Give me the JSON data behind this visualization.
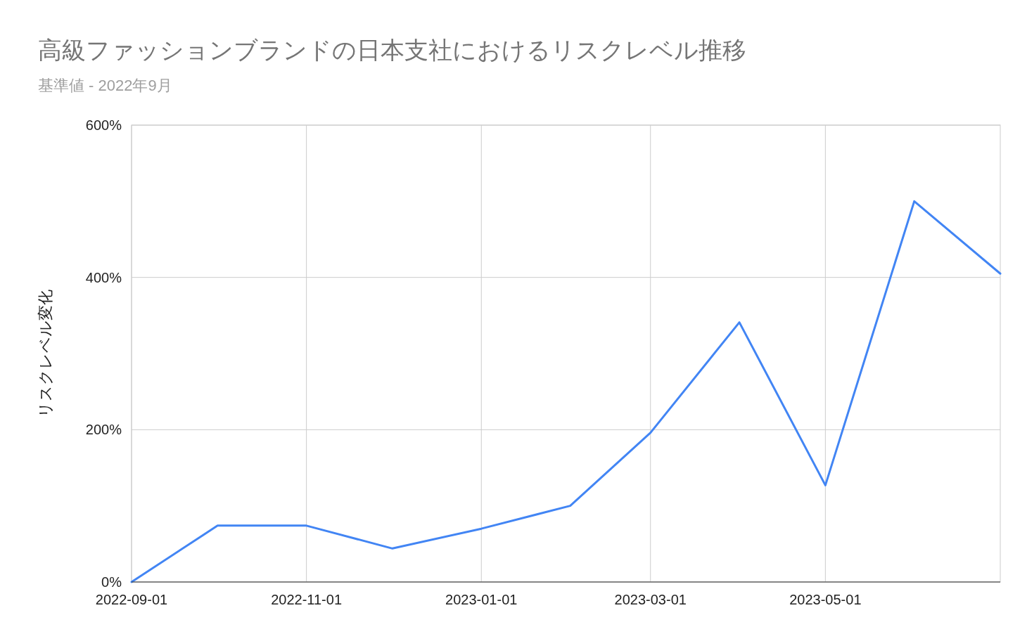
{
  "chart_data": {
    "type": "line",
    "title": "高級ファッションブランドの日本支社におけるリスクレベル推移",
    "subtitle": "基準値 - 2022年9月",
    "ylabel": "リスクレベル変化",
    "x": [
      "2022-09-01",
      "2022-10-01",
      "2022-11-01",
      "2022-12-01",
      "2023-01-01",
      "2023-02-01",
      "2023-03-01",
      "2023-04-01",
      "2023-05-01",
      "2023-06-01",
      "2023-07-01"
    ],
    "series": [
      {
        "color": "#4285f4",
        "values": [
          0,
          74,
          74,
          44,
          70,
          100,
          196,
          341,
          127,
          500,
          405
        ]
      }
    ],
    "xlim": [
      "2022-09-01",
      "2023-07-01"
    ],
    "xticks": [
      "2022-09-01",
      "2022-11-01",
      "2023-01-01",
      "2023-03-01",
      "2023-05-01"
    ],
    "ylim": [
      0,
      600
    ],
    "yticks": [
      {
        "value": 0,
        "label": "0%"
      },
      {
        "value": 200,
        "label": "200%"
      },
      {
        "value": 400,
        "label": "400%"
      },
      {
        "value": 600,
        "label": "600%"
      }
    ],
    "grid": true,
    "line_style": "solid"
  }
}
